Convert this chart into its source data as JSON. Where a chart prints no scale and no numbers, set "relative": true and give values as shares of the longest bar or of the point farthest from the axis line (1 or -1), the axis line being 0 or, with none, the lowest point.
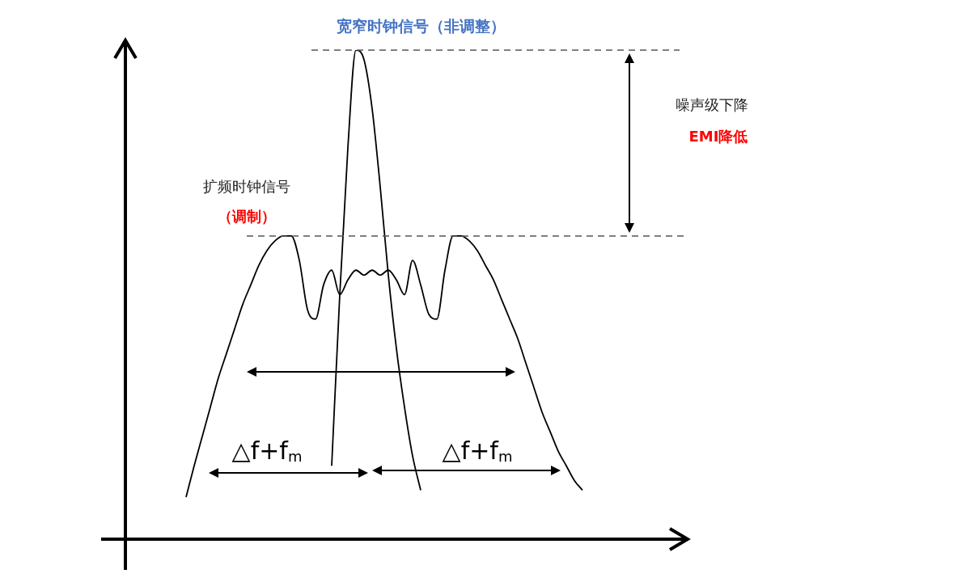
{
  "chart_data": {
    "type": "line",
    "relative": true,
    "categories": [
      null,
      null,
      null,
      null,
      null,
      null,
      null,
      null,
      null,
      null,
      null,
      null,
      null,
      null,
      null,
      null,
      null,
      null,
      null,
      null,
      null,
      null,
      null,
      null,
      null,
      null,
      null,
      null,
      null,
      null,
      null,
      null,
      null,
      null,
      null,
      null,
      null,
      null,
      null,
      null,
      null,
      null,
      null,
      null,
      null,
      null,
      null,
      null,
      null,
      null
    ],
    "series": [
      {
        "name": "宽窄时钟信号（非调整）",
        "color": "#000000",
        "values": [
          null,
          null,
          null,
          null,
          null,
          null,
          null,
          null,
          null,
          null,
          null,
          null,
          null,
          null,
          null,
          null,
          null,
          null,
          0.15,
          0.5,
          0.8,
          1,
          0.98,
          0.88,
          0.72,
          0.54,
          0.39,
          0.27,
          0.17,
          0.1,
          null,
          null,
          null,
          null,
          null,
          null,
          null,
          null,
          null,
          null,
          null,
          null,
          null,
          null,
          null,
          null,
          null,
          null,
          null,
          null
        ]
      },
      {
        "name": "扩频时钟信号",
        "color": "#000000",
        "values": [
          0.086,
          0.15,
          0.21,
          0.27,
          0.33,
          0.38,
          0.43,
          0.48,
          0.52,
          0.56,
          0.59,
          0.61,
          0.62,
          0.62,
          0.57,
          0.47,
          0.45,
          0.52,
          0.55,
          0.5,
          0.53,
          0.55,
          0.54,
          0.55,
          0.54,
          0.55,
          0.53,
          0.5,
          0.57,
          0.52,
          0.46,
          0.45,
          0.55,
          0.62,
          0.62,
          0.61,
          0.59,
          0.56,
          0.53,
          0.49,
          0.45,
          0.41,
          0.36,
          0.31,
          0.26,
          0.22,
          0.18,
          0.15,
          0.12,
          0.1
        ]
      }
    ],
    "ref_lines": [
      {
        "axis": "y",
        "value": 1,
        "line_style": "dashed",
        "color": "#555555"
      },
      {
        "axis": "y",
        "value": 0.62,
        "line_style": "dashed",
        "color": "#555555"
      }
    ],
    "annotations": [
      "（调制）",
      "噪声级下降",
      "EMI降低",
      "△f+f$_{m}$",
      "△f+f$_{m}$"
    ],
    "legend": false,
    "marker": "none",
    "line_style": "solid"
  }
}
